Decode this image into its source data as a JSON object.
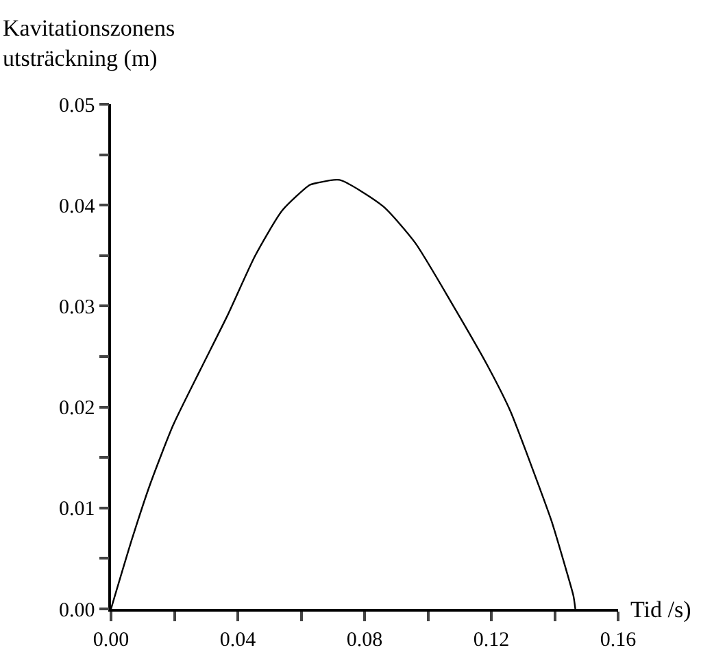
{
  "chart_data": {
    "type": "line",
    "xlabel": "Tid /s)",
    "ylabel": "Kavitationszonens\nutsträckning (m)",
    "x": [
      0,
      0.0066,
      0.0124,
      0.0196,
      0.0282,
      0.0368,
      0.0455,
      0.0541,
      0.0627,
      0.0649,
      0.0721,
      0.0858,
      0.0959,
      0.1073,
      0.1188,
      0.126,
      0.1332,
      0.139,
      0.1433,
      0.1459,
      0.1465
    ],
    "series": [
      {
        "color": "#000000",
        "values": [
          0,
          0.0069,
          0.0124,
          0.0182,
          0.0237,
          0.0291,
          0.035,
          0.0395,
          0.042,
          0.0422,
          0.0425,
          0.0399,
          0.0363,
          0.0304,
          0.0241,
          0.0196,
          0.0137,
          0.0087,
          0.0042,
          0.0013,
          0
        ]
      }
    ],
    "xlim": [
      0,
      0.16
    ],
    "ylim": [
      0,
      0.05
    ],
    "xticks": [
      {
        "value": 0,
        "label": "0.00"
      },
      {
        "value": 0.02,
        "label": null
      },
      0.04,
      {
        "value": 0.06,
        "label": null
      },
      0.08,
      {
        "value": 0.1,
        "label": null
      },
      0.12,
      {
        "value": 0.14,
        "label": null
      },
      0.16
    ],
    "yticks": [
      {
        "value": 0,
        "label": "0.00"
      },
      {
        "value": 0.005,
        "label": null
      },
      0.01,
      {
        "value": 0.015,
        "label": null
      },
      0.02,
      {
        "value": 0.025,
        "label": null
      },
      0.03,
      {
        "value": 0.035,
        "label": null
      },
      0.04,
      {
        "value": 0.045,
        "label": null
      },
      0.05
    ],
    "legend": false,
    "marker": "none",
    "line_style": "solid"
  }
}
